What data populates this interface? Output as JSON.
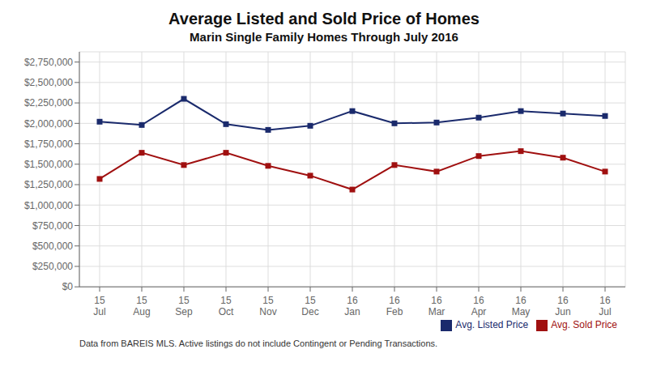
{
  "chart_data": {
    "type": "line",
    "title": "Average Listed and Sold Price of Homes",
    "subtitle": "Marin Single Family Homes Through July 2016",
    "categories": [
      "15\nJul",
      "15\nAug",
      "15\nSep",
      "15\nOct",
      "15\nNov",
      "15\nDec",
      "16\nJan",
      "16\nFeb",
      "16\nMar",
      "16\nApr",
      "16\nMay",
      "16\nJun",
      "16\nJul"
    ],
    "series": [
      {
        "name": "Avg. Listed Price",
        "color": "#1a2a6c",
        "marker": "square",
        "values": [
          2020000,
          1980000,
          2300000,
          1990000,
          1920000,
          1970000,
          2150000,
          2000000,
          2010000,
          2070000,
          2150000,
          2120000,
          2090000
        ]
      },
      {
        "name": "Avg. Sold Price",
        "color": "#a01010",
        "marker": "square",
        "values": [
          1320000,
          1640000,
          1490000,
          1640000,
          1480000,
          1360000,
          1190000,
          1490000,
          1410000,
          1600000,
          1660000,
          1580000,
          1410000
        ]
      }
    ],
    "ylim": [
      0,
      2875000
    ],
    "yticks": [
      {
        "value": 0,
        "label": "$0"
      },
      {
        "value": 250000,
        "label": "$250,000"
      },
      {
        "value": 500000,
        "label": "$500,000"
      },
      {
        "value": 750000,
        "label": "$750,000"
      },
      {
        "value": 1000000,
        "label": "$1,000,000"
      },
      {
        "value": 1250000,
        "label": "$1,250,000"
      },
      {
        "value": 1500000,
        "label": "$1,500,000"
      },
      {
        "value": 1750000,
        "label": "$1,750,000"
      },
      {
        "value": 2000000,
        "label": "$2,000,000"
      },
      {
        "value": 2250000,
        "label": "$2,250,000"
      },
      {
        "value": 2500000,
        "label": "$2,500,000"
      },
      {
        "value": 2750000,
        "label": "$2,750,000"
      }
    ],
    "annotations": [
      "Data from BAREIS MLS. Active listings do not include Contingent or Pending Transactions."
    ],
    "grid": true,
    "legend": "bottom"
  }
}
